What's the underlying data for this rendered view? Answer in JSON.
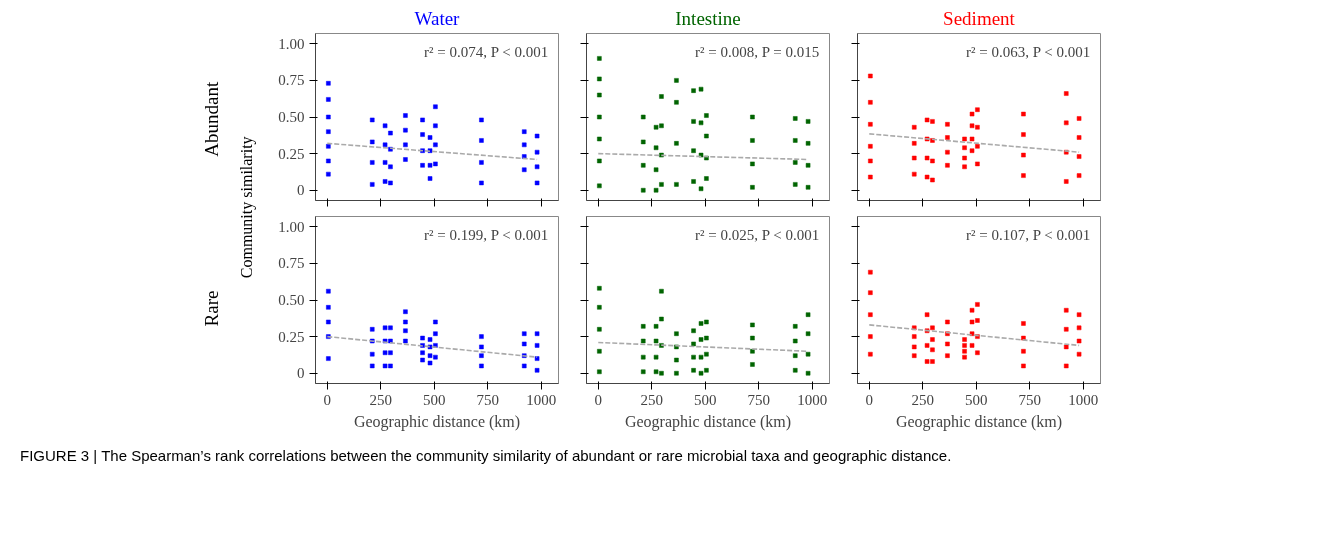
{
  "chart_data": [
    {
      "type": "scatter",
      "title": "Water",
      "ylabel": "Abundant",
      "xlim": [
        -55,
        1080
      ],
      "ylim": [
        -0.07,
        1.07
      ],
      "xticks": [
        0,
        250,
        500,
        750,
        1000
      ],
      "yticks": [
        0,
        {
          "value": 0.25,
          "label": "0.25"
        },
        {
          "value": 0.5,
          "label": "0.50"
        },
        {
          "value": 0.75,
          "label": "0.75"
        },
        {
          "value": 1,
          "label": "1.00"
        }
      ],
      "tick_labels": "y",
      "grid": false,
      "marker": "square",
      "annotations": [
        "r² = 0.074, P < 0.001",
        "Community similarity"
      ],
      "series": [
        {
          "color": "#0000ff",
          "x": [
            5,
            5,
            5,
            5,
            5,
            5,
            5,
            210,
            210,
            210,
            210,
            270,
            270,
            270,
            270,
            295,
            295,
            295,
            295,
            365,
            365,
            365,
            365,
            445,
            445,
            445,
            445,
            480,
            480,
            480,
            480,
            505,
            505,
            505,
            505,
            720,
            720,
            720,
            720,
            920,
            920,
            920,
            920,
            980,
            980,
            980,
            980
          ],
          "values": [
            0.73,
            0.62,
            0.5,
            0.4,
            0.3,
            0.2,
            0.11,
            0.48,
            0.33,
            0.19,
            0.04,
            0.44,
            0.31,
            0.19,
            0.06,
            0.39,
            0.28,
            0.16,
            0.05,
            0.51,
            0.41,
            0.31,
            0.21,
            0.48,
            0.38,
            0.27,
            0.17,
            0.36,
            0.27,
            0.17,
            0.08,
            0.57,
            0.44,
            0.31,
            0.18,
            0.48,
            0.34,
            0.19,
            0.05,
            0.4,
            0.31,
            0.23,
            0.14,
            0.37,
            0.26,
            0.16,
            0.05
          ]
        },
        {
          "type": "line",
          "color": "#aaaaaa",
          "line_style": "dashed",
          "marker": "none",
          "x": [
            0,
            980
          ],
          "values": [
            0.32,
            0.21
          ]
        }
      ]
    },
    {
      "type": "scatter",
      "title": "Intestine",
      "xlim": [
        -55,
        1080
      ],
      "ylim": [
        -0.07,
        1.07
      ],
      "xticks": [
        0,
        250,
        500,
        750,
        1000
      ],
      "yticks": [
        {
          "value": 0,
          "label": null
        },
        {
          "value": 0.25,
          "label": null
        },
        {
          "value": 0.5,
          "label": null
        },
        {
          "value": 0.75,
          "label": null
        },
        {
          "value": 1,
          "label": null
        }
      ],
      "tick_labels": false,
      "grid": false,
      "marker": "square",
      "annotations": [
        "r² = 0.008, P = 0.015"
      ],
      "series": [
        {
          "color": "#006400",
          "x": [
            5,
            5,
            5,
            5,
            5,
            5,
            5,
            210,
            210,
            210,
            210,
            270,
            270,
            270,
            270,
            295,
            295,
            295,
            295,
            365,
            365,
            365,
            365,
            445,
            445,
            445,
            445,
            480,
            480,
            480,
            480,
            505,
            505,
            505,
            505,
            720,
            720,
            720,
            720,
            920,
            920,
            920,
            920,
            980,
            980,
            980,
            980
          ],
          "values": [
            0.9,
            0.76,
            0.65,
            0.5,
            0.35,
            0.2,
            0.03,
            0.5,
            0.33,
            0.17,
            0.0,
            0.43,
            0.29,
            0.14,
            0.0,
            0.64,
            0.44,
            0.24,
            0.04,
            0.75,
            0.6,
            0.32,
            0.04,
            0.68,
            0.47,
            0.27,
            0.06,
            0.69,
            0.46,
            0.24,
            0.01,
            0.51,
            0.37,
            0.22,
            0.08,
            0.5,
            0.34,
            0.18,
            0.02,
            0.49,
            0.34,
            0.19,
            0.04,
            0.47,
            0.32,
            0.17,
            0.02
          ]
        },
        {
          "type": "line",
          "color": "#aaaaaa",
          "line_style": "dashed",
          "marker": "none",
          "x": [
            0,
            980
          ],
          "values": [
            0.25,
            0.21
          ]
        }
      ]
    },
    {
      "type": "scatter",
      "title": "Sediment",
      "xlim": [
        -55,
        1080
      ],
      "ylim": [
        -0.07,
        1.07
      ],
      "xticks": [
        0,
        250,
        500,
        750,
        1000
      ],
      "yticks": [
        {
          "value": 0,
          "label": null
        },
        {
          "value": 0.25,
          "label": null
        },
        {
          "value": 0.5,
          "label": null
        },
        {
          "value": 0.75,
          "label": null
        },
        {
          "value": 1,
          "label": null
        }
      ],
      "tick_labels": false,
      "grid": false,
      "marker": "square",
      "annotations": [
        "r² = 0.063, P < 0.001"
      ],
      "series": [
        {
          "color": "#ff0000",
          "x": [
            5,
            5,
            5,
            5,
            5,
            5,
            210,
            210,
            210,
            210,
            270,
            270,
            270,
            270,
            295,
            295,
            295,
            295,
            365,
            365,
            365,
            365,
            445,
            445,
            445,
            445,
            480,
            480,
            480,
            480,
            505,
            505,
            505,
            505,
            720,
            720,
            720,
            720,
            920,
            920,
            920,
            920,
            980,
            980,
            980,
            980
          ],
          "values": [
            0.78,
            0.6,
            0.45,
            0.3,
            0.2,
            0.09,
            0.43,
            0.32,
            0.22,
            0.11,
            0.48,
            0.35,
            0.22,
            0.09,
            0.47,
            0.34,
            0.2,
            0.07,
            0.45,
            0.36,
            0.26,
            0.17,
            0.35,
            0.29,
            0.22,
            0.16,
            0.52,
            0.44,
            0.35,
            0.27,
            0.55,
            0.43,
            0.3,
            0.18,
            0.52,
            0.38,
            0.24,
            0.1,
            0.66,
            0.46,
            0.26,
            0.06,
            0.49,
            0.36,
            0.23,
            0.1
          ]
        },
        {
          "type": "line",
          "color": "#aaaaaa",
          "line_style": "dashed",
          "marker": "none",
          "x": [
            0,
            980
          ],
          "values": [
            0.385,
            0.26
          ]
        }
      ]
    },
    {
      "type": "scatter",
      "ylabel": "Rare",
      "xlabel": "Geographic distance (km)",
      "xlim": [
        -55,
        1080
      ],
      "ylim": [
        -0.07,
        1.07
      ],
      "xticks": [
        0,
        250,
        500,
        750,
        1000
      ],
      "yticks": [
        0,
        {
          "value": 0.25,
          "label": "0.25"
        },
        {
          "value": 0.5,
          "label": "0.50"
        },
        {
          "value": 0.75,
          "label": "0.75"
        },
        {
          "value": 1,
          "label": "1.00"
        }
      ],
      "grid": false,
      "marker": "square",
      "annotations": [
        "r² = 0.199, P < 0.001"
      ],
      "series": [
        {
          "color": "#0000ff",
          "x": [
            5,
            5,
            5,
            5,
            5,
            210,
            210,
            210,
            210,
            270,
            270,
            270,
            270,
            295,
            295,
            295,
            295,
            365,
            365,
            365,
            365,
            445,
            445,
            445,
            445,
            480,
            480,
            480,
            480,
            505,
            505,
            505,
            505,
            720,
            720,
            720,
            720,
            920,
            920,
            920,
            920,
            980,
            980,
            980,
            980
          ],
          "values": [
            0.56,
            0.45,
            0.35,
            0.25,
            0.1,
            0.3,
            0.22,
            0.13,
            0.05,
            0.31,
            0.22,
            0.14,
            0.05,
            0.31,
            0.22,
            0.14,
            0.05,
            0.42,
            0.35,
            0.29,
            0.22,
            0.24,
            0.19,
            0.14,
            0.09,
            0.23,
            0.18,
            0.12,
            0.07,
            0.35,
            0.27,
            0.19,
            0.11,
            0.25,
            0.18,
            0.12,
            0.05,
            0.27,
            0.2,
            0.12,
            0.05,
            0.27,
            0.19,
            0.1,
            0.02
          ]
        },
        {
          "type": "line",
          "color": "#aaaaaa",
          "line_style": "dashed",
          "marker": "none",
          "x": [
            0,
            980
          ],
          "values": [
            0.25,
            0.11
          ]
        }
      ]
    },
    {
      "type": "scatter",
      "xlabel": "Geographic distance (km)",
      "xlim": [
        -55,
        1080
      ],
      "ylim": [
        -0.07,
        1.07
      ],
      "xticks": [
        0,
        250,
        500,
        750,
        1000
      ],
      "yticks": [
        {
          "value": 0,
          "label": null
        },
        {
          "value": 0.25,
          "label": null
        },
        {
          "value": 0.5,
          "label": null
        },
        {
          "value": 0.75,
          "label": null
        },
        {
          "value": 1,
          "label": null
        }
      ],
      "tick_labels": "x",
      "grid": false,
      "marker": "square",
      "annotations": [
        "r² = 0.025, P < 0.001"
      ],
      "series": [
        {
          "color": "#006400",
          "x": [
            5,
            5,
            5,
            5,
            5,
            210,
            210,
            210,
            210,
            270,
            270,
            270,
            270,
            295,
            295,
            295,
            295,
            365,
            365,
            365,
            365,
            445,
            445,
            445,
            445,
            480,
            480,
            480,
            480,
            505,
            505,
            505,
            505,
            720,
            720,
            720,
            720,
            920,
            920,
            920,
            920,
            980,
            980,
            980,
            980
          ],
          "values": [
            0.58,
            0.45,
            0.3,
            0.15,
            0.01,
            0.32,
            0.22,
            0.11,
            0.01,
            0.32,
            0.22,
            0.11,
            0.01,
            0.56,
            0.37,
            0.19,
            0.0,
            0.27,
            0.18,
            0.09,
            0.0,
            0.29,
            0.2,
            0.11,
            0.02,
            0.34,
            0.23,
            0.11,
            0.0,
            0.35,
            0.24,
            0.13,
            0.02,
            0.33,
            0.24,
            0.15,
            0.06,
            0.32,
            0.22,
            0.12,
            0.02,
            0.4,
            0.27,
            0.13,
            0.0
          ]
        },
        {
          "type": "line",
          "color": "#aaaaaa",
          "line_style": "dashed",
          "marker": "none",
          "x": [
            0,
            980
          ],
          "values": [
            0.21,
            0.15
          ]
        }
      ]
    },
    {
      "type": "scatter",
      "xlabel": "Geographic distance (km)",
      "xlim": [
        -55,
        1080
      ],
      "ylim": [
        -0.07,
        1.07
      ],
      "xticks": [
        0,
        250,
        500,
        750,
        1000
      ],
      "yticks": [
        {
          "value": 0,
          "label": null
        },
        {
          "value": 0.25,
          "label": null
        },
        {
          "value": 0.5,
          "label": null
        },
        {
          "value": 0.75,
          "label": null
        },
        {
          "value": 1,
          "label": null
        }
      ],
      "tick_labels": "x",
      "grid": false,
      "marker": "square",
      "annotations": [
        "r² = 0.107, P < 0.001",
        "FIGURE 3 | The Spearman’s rank correlations between the community similarity of abundant or rare microbial taxa and geographic distance."
      ],
      "series": [
        {
          "color": "#ff0000",
          "x": [
            5,
            5,
            5,
            5,
            5,
            210,
            210,
            210,
            210,
            270,
            270,
            270,
            270,
            295,
            295,
            295,
            295,
            365,
            365,
            365,
            365,
            445,
            445,
            445,
            445,
            480,
            480,
            480,
            480,
            505,
            505,
            505,
            505,
            720,
            720,
            720,
            720,
            920,
            920,
            920,
            920,
            980,
            980,
            980,
            980
          ],
          "values": [
            0.69,
            0.55,
            0.4,
            0.25,
            0.13,
            0.31,
            0.25,
            0.18,
            0.12,
            0.4,
            0.29,
            0.19,
            0.08,
            0.31,
            0.23,
            0.16,
            0.08,
            0.35,
            0.27,
            0.2,
            0.12,
            0.23,
            0.19,
            0.15,
            0.11,
            0.43,
            0.35,
            0.27,
            0.19,
            0.47,
            0.36,
            0.25,
            0.14,
            0.34,
            0.24,
            0.15,
            0.05,
            0.43,
            0.3,
            0.18,
            0.05,
            0.4,
            0.31,
            0.22,
            0.13
          ]
        },
        {
          "type": "line",
          "color": "#aaaaaa",
          "line_style": "dashed",
          "marker": "none",
          "x": [
            0,
            980
          ],
          "values": [
            0.33,
            0.19
          ]
        }
      ]
    }
  ]
}
